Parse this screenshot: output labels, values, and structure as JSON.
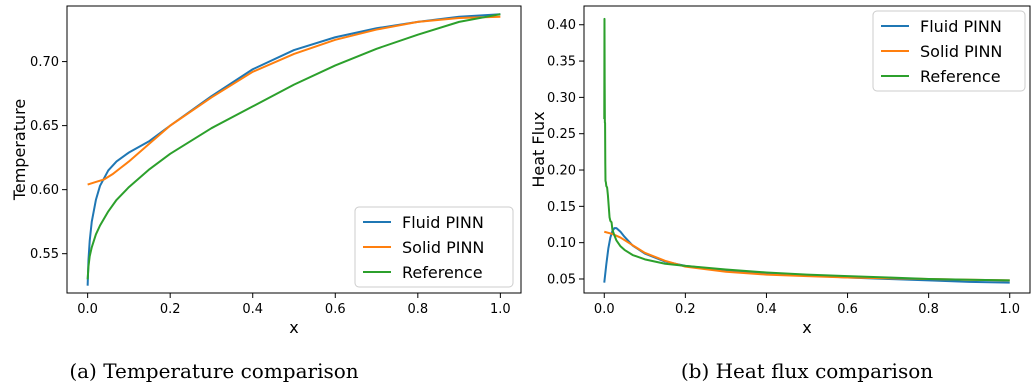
{
  "chart_data": [
    {
      "type": "line",
      "caption": "(a) Temperature comparison",
      "xlabel": "x",
      "ylabel": "Temperature",
      "xlim": [
        -0.05,
        1.05
      ],
      "ylim": [
        0.5193,
        0.7434
      ],
      "xticks": [
        "0.0",
        "0.2",
        "0.4",
        "0.6",
        "0.8",
        "1.0"
      ],
      "xtick_values": [
        0,
        0.2,
        0.4,
        0.6,
        0.8,
        1.0
      ],
      "yticks": [
        "0.55",
        "0.60",
        "0.65",
        "0.70"
      ],
      "ytick_values": [
        0.55,
        0.6,
        0.65,
        0.7
      ],
      "legend_position": "bottom-right",
      "series": [
        {
          "name": "Fluid PINN",
          "color": "#1f77b4",
          "x": [
            0,
            0.002,
            0.005,
            0.01,
            0.02,
            0.03,
            0.05,
            0.07,
            0.1,
            0.15,
            0.2,
            0.3,
            0.4,
            0.5,
            0.6,
            0.7,
            0.8,
            0.9,
            1.0
          ],
          "y": [
            0.525,
            0.545,
            0.56,
            0.575,
            0.592,
            0.603,
            0.615,
            0.622,
            0.629,
            0.638,
            0.65,
            0.673,
            0.694,
            0.709,
            0.719,
            0.726,
            0.731,
            0.735,
            0.737
          ]
        },
        {
          "name": "Solid PINN",
          "color": "#ff7f0e",
          "x": [
            0,
            0.02,
            0.04,
            0.06,
            0.08,
            0.1,
            0.15,
            0.2,
            0.3,
            0.4,
            0.5,
            0.6,
            0.7,
            0.8,
            0.9,
            1.0
          ],
          "y": [
            0.604,
            0.606,
            0.608,
            0.612,
            0.617,
            0.622,
            0.636,
            0.65,
            0.672,
            0.692,
            0.706,
            0.717,
            0.725,
            0.731,
            0.734,
            0.735
          ]
        },
        {
          "name": "Reference",
          "color": "#2ca02c",
          "x": [
            0,
            0.002,
            0.005,
            0.01,
            0.02,
            0.03,
            0.05,
            0.07,
            0.1,
            0.15,
            0.2,
            0.3,
            0.4,
            0.5,
            0.6,
            0.7,
            0.8,
            0.9,
            1.0
          ],
          "y": [
            0.53,
            0.54,
            0.548,
            0.555,
            0.565,
            0.572,
            0.583,
            0.592,
            0.602,
            0.616,
            0.628,
            0.648,
            0.665,
            0.682,
            0.697,
            0.71,
            0.721,
            0.731,
            0.737
          ]
        }
      ]
    },
    {
      "type": "line",
      "caption": "(b) Heat flux comparison",
      "xlabel": "x",
      "ylabel": "Heat Flux",
      "xlim": [
        -0.05,
        1.05
      ],
      "ylim": [
        0.0307,
        0.4258
      ],
      "xticks": [
        "0.0",
        "0.2",
        "0.4",
        "0.6",
        "0.8",
        "1.0"
      ],
      "xtick_values": [
        0,
        0.2,
        0.4,
        0.6,
        0.8,
        1.0
      ],
      "yticks": [
        "0.05",
        "0.10",
        "0.15",
        "0.20",
        "0.25",
        "0.30",
        "0.35",
        "0.40"
      ],
      "ytick_values": [
        0.05,
        0.1,
        0.15,
        0.2,
        0.25,
        0.3,
        0.35,
        0.4
      ],
      "legend_position": "top-right",
      "series": [
        {
          "name": "Fluid PINN",
          "color": "#1f77b4",
          "x": [
            0,
            0.005,
            0.01,
            0.015,
            0.02,
            0.025,
            0.03,
            0.04,
            0.05,
            0.07,
            0.1,
            0.15,
            0.2,
            0.3,
            0.4,
            0.5,
            0.6,
            0.7,
            0.8,
            0.9,
            1.0
          ],
          "y": [
            0.045,
            0.07,
            0.092,
            0.107,
            0.116,
            0.12,
            0.12,
            0.115,
            0.108,
            0.096,
            0.085,
            0.074,
            0.068,
            0.062,
            0.058,
            0.055,
            0.052,
            0.05,
            0.048,
            0.046,
            0.045
          ]
        },
        {
          "name": "Solid PINN",
          "color": "#ff7f0e",
          "x": [
            0,
            0.02,
            0.04,
            0.06,
            0.08,
            0.1,
            0.15,
            0.2,
            0.3,
            0.4,
            0.5,
            0.6,
            0.7,
            0.8,
            0.9,
            1.0
          ],
          "y": [
            0.115,
            0.112,
            0.107,
            0.1,
            0.093,
            0.086,
            0.075,
            0.067,
            0.06,
            0.056,
            0.054,
            0.052,
            0.051,
            0.05,
            0.049,
            0.048
          ]
        },
        {
          "name": "Reference",
          "color": "#2ca02c",
          "x": [
            0,
            0.0005,
            0.001,
            0.0015,
            0.002,
            0.0025,
            0.003,
            0.004,
            0.005,
            0.007,
            0.009,
            0.011,
            0.013,
            0.015,
            0.018,
            0.02,
            0.025,
            0.03,
            0.04,
            0.05,
            0.07,
            0.1,
            0.15,
            0.2,
            0.3,
            0.4,
            0.5,
            0.6,
            0.7,
            0.8,
            0.9,
            1.0
          ],
          "y": [
            0.27,
            0.408,
            0.32,
            0.265,
            0.265,
            0.21,
            0.185,
            0.183,
            0.178,
            0.176,
            0.165,
            0.15,
            0.135,
            0.13,
            0.128,
            0.118,
            0.11,
            0.103,
            0.095,
            0.09,
            0.083,
            0.077,
            0.071,
            0.068,
            0.063,
            0.059,
            0.056,
            0.054,
            0.052,
            0.05,
            0.049,
            0.048
          ]
        }
      ]
    }
  ]
}
